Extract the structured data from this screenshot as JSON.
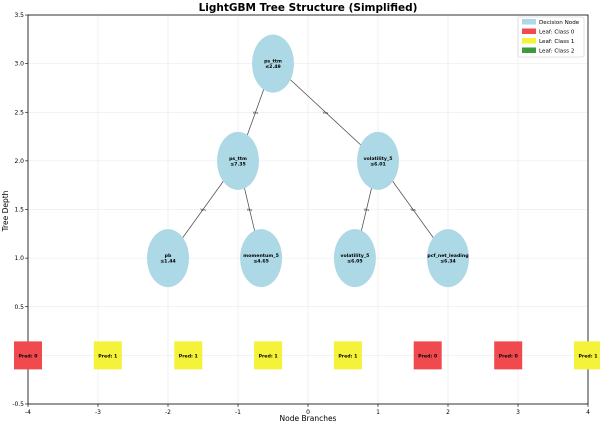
{
  "title": "LightGBM Tree Structure (Simplified)",
  "axes": {
    "xlabel": "Node Branches",
    "ylabel": "Tree Depth",
    "xlim": [
      -4,
      4
    ],
    "ylim": [
      -0.5,
      3.5
    ],
    "xticks": [
      "-4",
      "-3",
      "-2",
      "-1",
      "0",
      "1",
      "2",
      "3",
      "4"
    ],
    "yticks": [
      "-0.5",
      "0.0",
      "0.5",
      "1.0",
      "1.5",
      "2.0",
      "2.5",
      "3.0",
      "3.5"
    ],
    "grid": true
  },
  "legend": {
    "placement": "top-right",
    "items": [
      {
        "label": "Decision Node",
        "color": "#add8e6"
      },
      {
        "label": "Leaf: Class 0",
        "color": "#f04a4f"
      },
      {
        "label": "Leaf: Class 1",
        "color": "#f5f23a"
      },
      {
        "label": "Leaf: Class 2",
        "color": "#3f9a3c"
      }
    ]
  },
  "edge_label": "Yes",
  "nodes": [
    {
      "id": "root",
      "x": -0.5,
      "y": 3.0,
      "feature": "ps_ttm",
      "threshold": "≤2.49"
    },
    {
      "id": "l1a",
      "x": -1.0,
      "y": 2.0,
      "feature": "ps_ttm",
      "threshold": "≤7.35"
    },
    {
      "id": "l1b",
      "x": 1.0,
      "y": 2.0,
      "feature": "volatility_5",
      "threshold": "≤6.01"
    },
    {
      "id": "l2a",
      "x": -2.0,
      "y": 1.0,
      "feature": "pb",
      "threshold": "≤1.44"
    },
    {
      "id": "l2b",
      "x": -0.67,
      "y": 1.0,
      "feature": "momentum_5",
      "threshold": "≤4.65"
    },
    {
      "id": "l2c",
      "x": 0.67,
      "y": 1.0,
      "feature": "volatility_5",
      "threshold": "≤6.05"
    },
    {
      "id": "l2d",
      "x": 2.0,
      "y": 1.0,
      "feature": "pcf_net_leading",
      "threshold": "≤6.34"
    }
  ],
  "edges": [
    {
      "from": "root",
      "to": "l1a"
    },
    {
      "from": "root",
      "to": "l1b"
    },
    {
      "from": "l1a",
      "to": "l2a"
    },
    {
      "from": "l1a",
      "to": "l2b"
    },
    {
      "from": "l1b",
      "to": "l2c"
    },
    {
      "from": "l1b",
      "to": "l2d"
    }
  ],
  "leaves": [
    {
      "x": -4.0,
      "y": 0.0,
      "label": "Pred: 0",
      "class": 0
    },
    {
      "x": -2.86,
      "y": 0.0,
      "label": "Pred: 1",
      "class": 1
    },
    {
      "x": -1.71,
      "y": 0.0,
      "label": "Pred: 1",
      "class": 1
    },
    {
      "x": -0.57,
      "y": 0.0,
      "label": "Pred: 1",
      "class": 1
    },
    {
      "x": 0.57,
      "y": 0.0,
      "label": "Pred: 1",
      "class": 1
    },
    {
      "x": 1.71,
      "y": 0.0,
      "label": "Pred: 0",
      "class": 0
    },
    {
      "x": 2.86,
      "y": 0.0,
      "label": "Pred: 0",
      "class": 0
    },
    {
      "x": 4.0,
      "y": 0.0,
      "label": "Pred: 1",
      "class": 1
    }
  ],
  "leaf_colors": {
    "0": "#f04a4f",
    "1": "#f5f23a",
    "2": "#3f9a3c"
  },
  "node_color": "#add8e6"
}
